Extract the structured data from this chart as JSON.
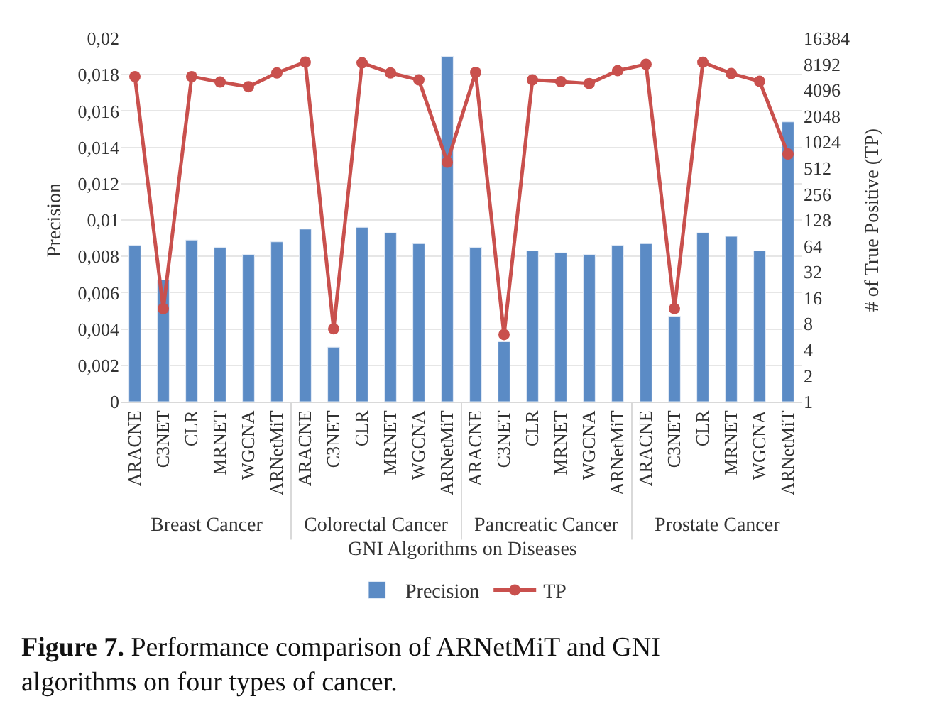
{
  "chart_data": {
    "type": "bar",
    "xlabel": "GNI Algorithms on Diseases",
    "ylabel": "Precision",
    "y2label": "# of True Positive (TP)",
    "categories": [
      "ARACNE",
      "C3NET",
      "CLR",
      "MRNET",
      "WGCNA",
      "ARNetMiT",
      "ARACNE",
      "C3NET",
      "CLR",
      "MRNET",
      "WGCNA",
      "ARNetMiT",
      "ARACNE",
      "C3NET",
      "CLR",
      "MRNET",
      "WGCNA",
      "ARNetMiT",
      "ARACNE",
      "C3NET",
      "CLR",
      "MRNET",
      "WGCNA",
      "ARNetMiT"
    ],
    "series": [
      {
        "name": "Precision",
        "color": "#5b8bc5",
        "values": [
          0.0086,
          0.0067,
          0.0089,
          0.0085,
          0.0081,
          0.0088,
          0.0095,
          0.003,
          0.0096,
          0.0093,
          0.0087,
          0.019,
          0.0085,
          0.0033,
          0.0083,
          0.0082,
          0.0081,
          0.0086,
          0.0087,
          0.0047,
          0.0093,
          0.0091,
          0.0083,
          0.0154
        ]
      },
      {
        "name": "TP",
        "type": "line",
        "axis": "y2",
        "color": "#c9504d",
        "marker": "circle",
        "values": [
          5900,
          12,
          5900,
          5100,
          4500,
          6500,
          8700,
          7,
          8500,
          6500,
          5400,
          600,
          6600,
          6,
          5400,
          5150,
          4900,
          6900,
          8200,
          12,
          8650,
          6400,
          5200,
          745
        ]
      }
    ],
    "ylim": [
      0,
      0.02
    ],
    "yticks": [
      0,
      {
        "value": 0.002,
        "label": "0,002"
      },
      {
        "value": 0.004,
        "label": "0,004"
      },
      {
        "value": 0.006,
        "label": "0,006"
      },
      {
        "value": 0.008,
        "label": "0,008"
      },
      {
        "value": 0.01,
        "label": "0,01"
      },
      {
        "value": 0.012,
        "label": "0,012"
      },
      {
        "value": 0.014,
        "label": "0,014"
      },
      {
        "value": 0.016,
        "label": "0,016"
      },
      {
        "value": 0.018,
        "label": "0,018"
      },
      {
        "value": 0.02,
        "label": "0,02"
      }
    ],
    "y2lim": [
      1,
      16384
    ],
    "y2ticks": [
      1,
      2,
      4,
      8,
      16,
      32,
      64,
      128,
      256,
      512,
      1024,
      2048,
      4096,
      8192,
      16384
    ],
    "log": "y2",
    "grid": "y",
    "legend": "bottom",
    "annotations": [
      "Breast Cancer",
      "Colorectal Cancer",
      "Pancreatic Cancer",
      "Prostate Cancer",
      "Figure 7. Performance comparison of ARNetMiT and GNI algorithms on four types of cancer."
    ]
  }
}
